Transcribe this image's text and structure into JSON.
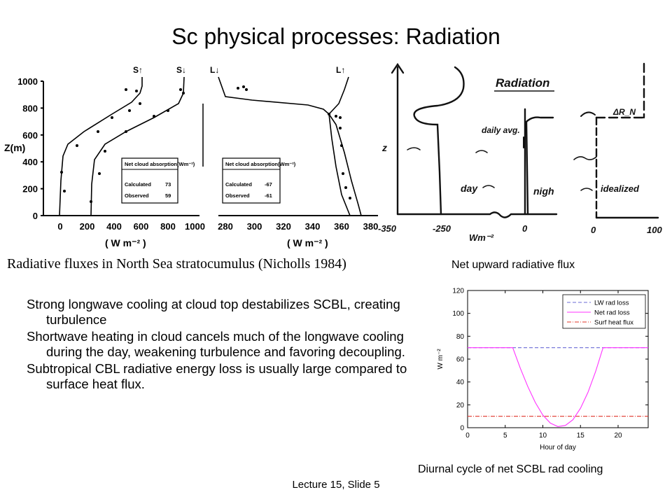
{
  "slide": {
    "title": "Sc physical processes: Radiation",
    "footer": "Lecture 15, Slide 5",
    "bullets": [
      "Strong longwave cooling at cloud top destabilizes SCBL, creating turbulence",
      "Shortwave heating in cloud cancels much of the longwave cooling during the day, weakening turbulence and favoring decoupling.",
      "Subtropical CBL radiative energy loss is usually large compared to surface heat flux."
    ]
  },
  "figure_nicholls": {
    "caption": "Radiative fluxes in North Sea stratocumulus (Nicholls 1984)",
    "ylabel": "Z(m)",
    "y_ticks": [
      "1000",
      "800",
      "600",
      "400",
      "200",
      "0"
    ],
    "sw": {
      "label_up": "S↑",
      "label_down": "S↓",
      "x_ticks": [
        "0",
        "200",
        "400",
        "600",
        "800",
        "1000"
      ],
      "unit": "( W m⁻² )",
      "box_title": "Net cloud absorption(Wm⁻²)",
      "calculated_label": "Calculated",
      "calculated_value": "73",
      "observed_label": "Observed",
      "observed_value": "59"
    },
    "lw": {
      "label_down": "L↓",
      "label_up": "L↑",
      "x_ticks": [
        "280",
        "300",
        "320",
        "340",
        "360",
        "380"
      ],
      "unit": "( W m⁻² )",
      "box_title": "Net cloud absorption(Wm⁻²)",
      "calculated_label": "Calculated",
      "calculated_value": "-67",
      "observed_label": "Observed",
      "observed_value": "-61"
    }
  },
  "figure_sketch": {
    "title": "Radiation",
    "z_label": "z",
    "x_ticks": [
      "-350",
      "-250",
      "0"
    ],
    "unit": "Wm⁻²",
    "day": "day",
    "night": "nigh",
    "daily_avg": "daily avg.",
    "ideal_title": "ΔR_N",
    "ideal_label": "idealized",
    "ideal_x_ticks": [
      "0",
      "100"
    ],
    "caption": "Net upward radiative flux"
  },
  "figure_diurnal": {
    "caption": "Diurnal cycle of net SCBL rad cooling",
    "chart_data": {
      "type": "line",
      "xlabel": "Hour of day",
      "ylabel": "W m⁻²",
      "xlim": [
        0,
        24
      ],
      "ylim": [
        0,
        120
      ],
      "x_ticks": [
        0,
        5,
        10,
        15,
        20
      ],
      "y_ticks": [
        0,
        20,
        40,
        60,
        80,
        100,
        120
      ],
      "legend_position": "top-right",
      "series": [
        {
          "name": "LW rad loss",
          "color": "#6b6bd6",
          "dash": "dashed",
          "x": [
            0,
            24
          ],
          "y": [
            70,
            70
          ]
        },
        {
          "name": "Net rad loss",
          "color": "#ff33ff",
          "dash": "solid",
          "x": [
            0,
            6,
            7,
            8,
            9,
            10,
            11,
            12,
            13,
            14,
            15,
            16,
            17,
            18,
            24
          ],
          "y": [
            70,
            70,
            52,
            36,
            22,
            11,
            4,
            1,
            2,
            7,
            17,
            31,
            49,
            70,
            70
          ]
        },
        {
          "name": "Surf heat flux",
          "color": "#e0342a",
          "dash": "dashdot",
          "x": [
            0,
            24
          ],
          "y": [
            10,
            10
          ]
        }
      ]
    }
  }
}
